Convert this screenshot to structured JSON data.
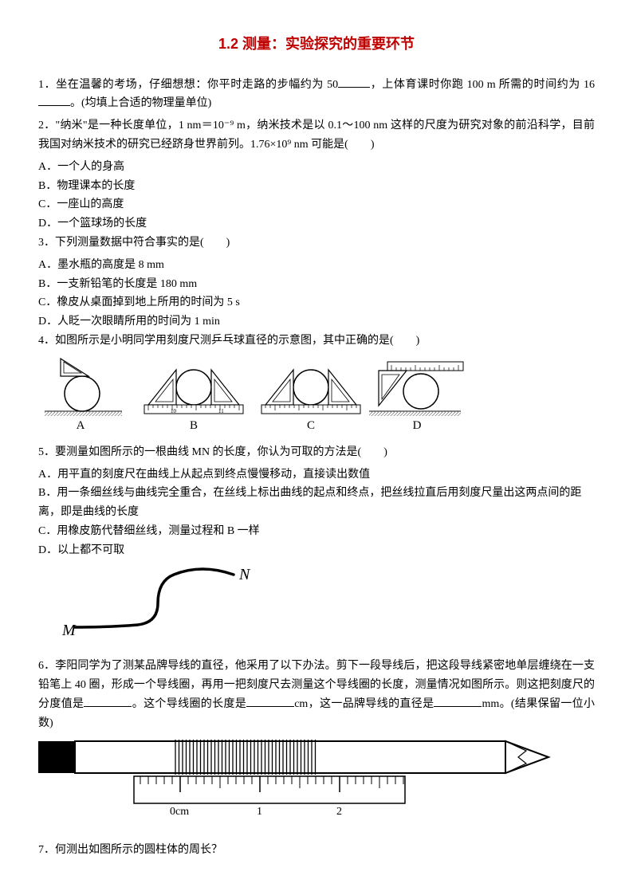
{
  "title_color": "#c00000",
  "title": "1.2 测量：实验探究的重要环节",
  "q1": {
    "prefix": "1．坐在温馨的考场，仔细想想：你平时走路的步幅约为 50",
    "mid1": "，上体育课时你跑 100 m 所需的时间约为 16",
    "suffix": "。(均填上合适的物理量单位)"
  },
  "q2": {
    "text": "2．\"纳米\"是一种长度单位，1 nm＝10⁻⁹ m，纳米技术是以 0.1～100 nm 这样的尺度为研究对象的前沿科学，目前我国对纳米技术的研究已经跻身世界前列。1.76×10⁹ nm 可能是(　　)",
    "a": "A．一个人的身高",
    "b": "B．物理课本的长度",
    "c": "C．一座山的高度",
    "d": "D．一个篮球场的长度"
  },
  "q3": {
    "text": "3．下列测量数据中符合事实的是(　　)",
    "a": "A．墨水瓶的高度是 8 mm",
    "b": "B．一支新铅笔的长度是 180 mm",
    "c": "C．橡皮从桌面掉到地上所用的时间为 5 s",
    "d": "D．人眨一次眼睛所用的时间为 1 min"
  },
  "q4": {
    "text": "4．如图所示是小明同学用刻度尺测乒乓球直径的示意图，其中正确的是(　　)",
    "labels": {
      "a": "A",
      "b": "B",
      "c": "C",
      "d": "D"
    }
  },
  "q5": {
    "text": "5．要测量如图所示的一根曲线 MN 的长度，你认为可取的方法是(　　)",
    "a": "A．用平直的刻度尺在曲线上从起点到终点慢慢移动，直接读出数值",
    "b": "B．用一条细丝线与曲线完全重合，在丝线上标出曲线的起点和终点，把丝线拉直后用刻度尺量出这两点间的距离，即是曲线的长度",
    "c": "C．用橡皮筋代替细丝线，测量过程和 B 一样",
    "d": "D．以上都不可取",
    "label_m": "M",
    "label_n": "N"
  },
  "q6": {
    "p1": "6．李阳同学为了测某品牌导线的直径，他采用了以下办法。剪下一段导线后，把这段导线紧密地单层缠绕在一支铅笔上 40 圈，形成一个导线圈，再用一把刻度尺去测量这个导线圈的长度，测量情况如图所示。则这把刻度尺的分度值是",
    "p2": "。这个导线圈的长度是",
    "p3": "cm，这一品牌导线的直径是",
    "p4": "mm。(结果保留一位小数)",
    "ruler_labels": [
      "0cm",
      "1",
      "2"
    ]
  },
  "q7": "7．何测出如图所示的圆柱体的周长？",
  "fig4": {
    "ball_fill": "#ffffff",
    "ball_stroke": "#000000",
    "tri_fill": "#ffffff",
    "hatch": "#888888"
  }
}
